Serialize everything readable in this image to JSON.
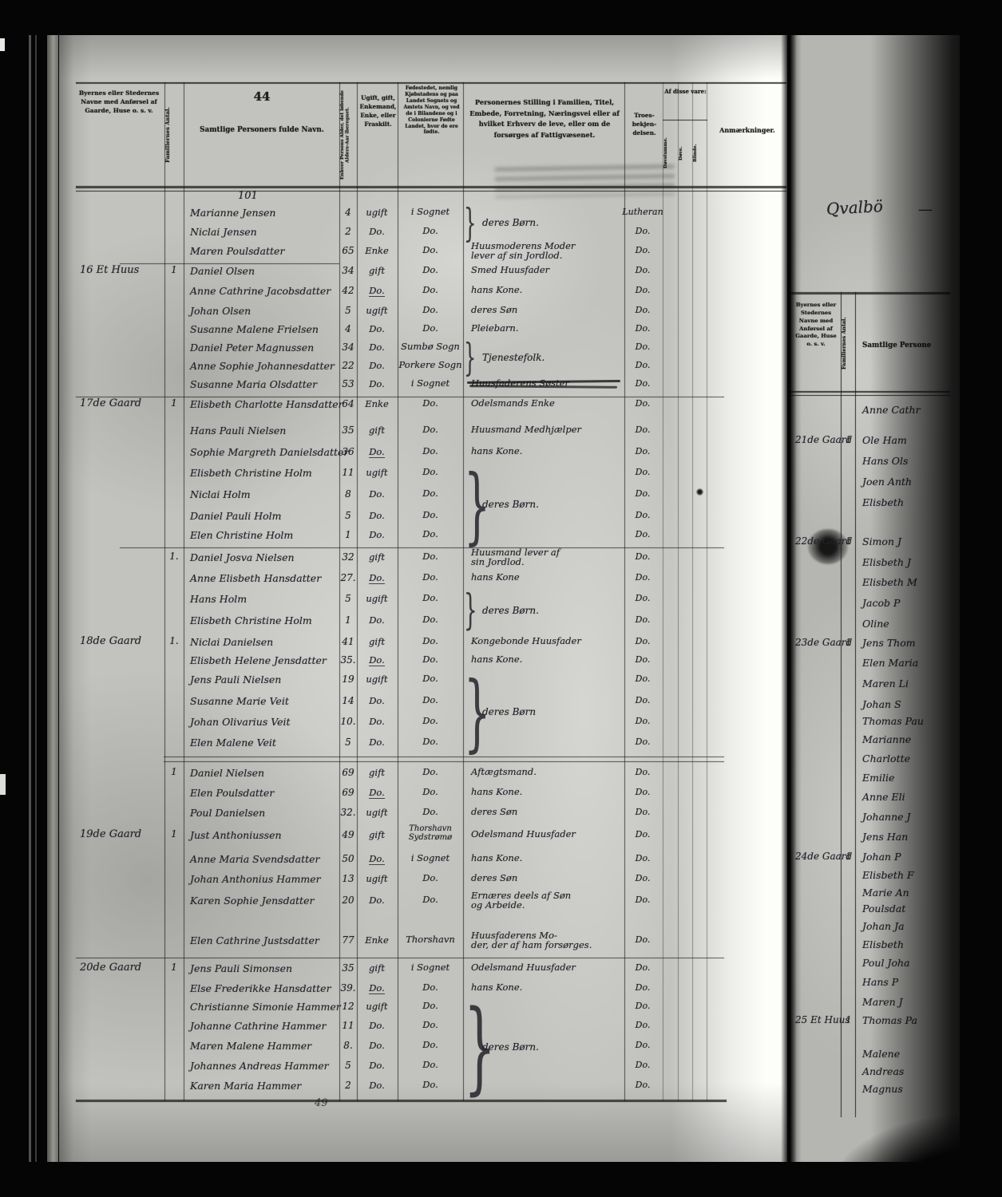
{
  "page": {
    "printed_number": "44",
    "handwritten_top": "101",
    "handwritten_bottom": "49",
    "header": {
      "place": "Byernes eller Stedernes Navne med Anførsel af Gaarde, Huse o. s. v.",
      "fam": "Familiernes Antal.",
      "name": "Samtlige Personers fulde Navn.",
      "age": "Enhver Persons Alder, det løbende Alders-Aar iberegnet.",
      "status": "Ugift, gift, Enkemand, Enke, eller Fraskilt.",
      "birth": "Fødestedet, nemlig Kjøbstadens og paa Landet Sognets og Amtets Navn, og ved de i Bilandene og i Colonierne Fødte Landet, hvor de ere fødte.",
      "position": "Personernes Stilling i Familien, Titel, Embede, Forretning, Næringsvei eller af hvilket Erhverv de leve, eller om de forsørges af Fattigvæsenet.",
      "religion": "Troes-bekjen-delsen.",
      "of_these": "Af disse vare:",
      "deaf_mute": "Døvstumme.",
      "deaf": "Døve.",
      "blind": "Blinde.",
      "remarks": "Anmærkninger."
    },
    "rows": [
      {
        "name": "Marianne Jensen",
        "age": "4",
        "status": "ugift",
        "birth": "i Sognet",
        "religion": "Lutheran"
      },
      {
        "name": "Niclai Jensen",
        "age": "2",
        "status": "Do.",
        "birth": "Do.",
        "religion": "Do."
      },
      {
        "name": "Maren Poulsdatter",
        "age": "65",
        "status": "Enke",
        "birth": "Do.",
        "religion": "Do.",
        "occ": "Huusmoderens Moder\nlever af sin Jordlod."
      },
      {
        "place": "16 Et Huus",
        "fam": "1",
        "name": "Daniel Olsen",
        "age": "34",
        "status": "gift",
        "birth": "Do.",
        "religion": "Do.",
        "occ": "Smed Huusfader"
      },
      {
        "name": "Anne Cathrine Jacobsdatter",
        "age": "42",
        "status": "Do.",
        "status_u": true,
        "birth": "Do.",
        "religion": "Do.",
        "occ": "hans Kone."
      },
      {
        "name": "Johan Olsen",
        "age": "5",
        "status": "ugift",
        "birth": "Do.",
        "religion": "Do.",
        "occ": "deres Søn"
      },
      {
        "name": "Susanne Malene Frielsen",
        "age": "4",
        "status": "Do.",
        "birth": "Do.",
        "religion": "Do.",
        "occ": "Pleiebarn."
      },
      {
        "name": "Daniel Peter Magnussen",
        "age": "34",
        "status": "Do.",
        "birth": "Sumbø Sogn",
        "religion": "Do."
      },
      {
        "name": "Anne Sophie Johannesdatter",
        "age": "22",
        "status": "Do.",
        "birth": "Porkere Sogn",
        "religion": "Do."
      },
      {
        "name": "Susanne Maria Olsdatter",
        "age": "53",
        "status": "Do.",
        "birth": "i Sognet",
        "religion": "Do.",
        "occ": "Huusfaderens Søster",
        "struck": true
      },
      {
        "place": "17de Gaard",
        "fam": "1",
        "name": "Elisbeth Charlotte Hansdatter",
        "age": "64",
        "status": "Enke",
        "birth": "Do.",
        "religion": "Do.",
        "occ": "Odelsmands Enke"
      },
      {
        "name": "Hans Pauli Nielsen",
        "age": "35",
        "status": "gift",
        "birth": "Do.",
        "religion": "Do.",
        "occ": "Huusmand Medhjælper"
      },
      {
        "name": "Sophie Margreth Danielsdatter",
        "age": "36",
        "status": "Do.",
        "status_u": true,
        "birth": "Do.",
        "religion": "Do.",
        "occ": "hans Kone."
      },
      {
        "name": "Elisbeth Christine Holm",
        "age": "11",
        "status": "ugift",
        "birth": "Do.",
        "religion": "Do."
      },
      {
        "name": "Niclai Holm",
        "age": "8",
        "status": "Do.",
        "birth": "Do.",
        "religion": "Do."
      },
      {
        "name": "Daniel Pauli Holm",
        "age": "5",
        "status": "Do.",
        "birth": "Do.",
        "religion": "Do."
      },
      {
        "name": "Elen Christine Holm",
        "age": "1",
        "status": "Do.",
        "birth": "Do.",
        "religion": "Do."
      },
      {
        "fam": "1.",
        "name": "Daniel Josva Nielsen",
        "age": "32",
        "status": "gift",
        "birth": "Do.",
        "religion": "Do.",
        "occ": "Huusmand lever af\nsin Jordlod."
      },
      {
        "name": "Anne Elisbeth Hansdatter",
        "age": "27.",
        "status": "Do.",
        "status_u": true,
        "birth": "Do.",
        "religion": "Do.",
        "occ": "hans Kone"
      },
      {
        "name": "Hans Holm",
        "age": "5",
        "status": "ugift",
        "birth": "Do.",
        "religion": "Do."
      },
      {
        "name": "Elisbeth Christine Holm",
        "age": "1",
        "status": "Do.",
        "birth": "Do.",
        "religion": "Do."
      },
      {
        "place": "18de Gaard",
        "fam": "1.",
        "name": "Niclai Danielsen",
        "age": "41",
        "status": "gift",
        "birth": "Do.",
        "religion": "Do.",
        "occ": "Kongebonde Huusfader"
      },
      {
        "name": "Elisbeth Helene Jensdatter",
        "age": "35.",
        "status": "Do.",
        "status_u": true,
        "birth": "Do.",
        "religion": "Do.",
        "occ": "hans Kone."
      },
      {
        "name": "Jens Pauli Nielsen",
        "age": "19",
        "status": "ugift",
        "birth": "Do.",
        "religion": "Do."
      },
      {
        "name": "Susanne Marie Veit",
        "age": "14",
        "status": "Do.",
        "birth": "Do.",
        "religion": "Do."
      },
      {
        "name": "Johan Olivarius Veit",
        "age": "10.",
        "status": "Do.",
        "birth": "Do.",
        "religion": "Do."
      },
      {
        "name": "Elen Malene Veit",
        "age": "5",
        "status": "Do.",
        "birth": "Do.",
        "religion": "Do."
      },
      {
        "fam": "1",
        "name": "Daniel Nielsen",
        "age": "69",
        "status": "gift",
        "birth": "Do.",
        "religion": "Do.",
        "occ": "Aftægtsmand."
      },
      {
        "name": "Elen Poulsdatter",
        "age": "69",
        "status": "Do.",
        "status_u": true,
        "birth": "Do.",
        "religion": "Do.",
        "occ": "hans Kone."
      },
      {
        "name": "Poul Danielsen",
        "age": "32.",
        "status": "ugift",
        "birth": "Do.",
        "religion": "Do.",
        "occ": "deres Søn"
      },
      {
        "place": "19de Gaard",
        "fam": "1",
        "name": "Just Anthoniussen",
        "age": "49",
        "status": "gift",
        "birth": "Thorshavn\nSydstrømø",
        "religion": "Do.",
        "occ": "Odelsmand Huusfader"
      },
      {
        "name": "Anne Maria Svendsdatter",
        "age": "50",
        "status": "Do.",
        "status_u": true,
        "birth": "i Sognet",
        "religion": "Do.",
        "occ": "hans Kone."
      },
      {
        "name": "Johan Anthonius Hammer",
        "age": "13",
        "status": "ugift",
        "birth": "Do.",
        "religion": "Do.",
        "occ": "deres Søn"
      },
      {
        "name": "Karen Sophie Jensdatter",
        "age": "20",
        "status": "Do.",
        "birth": "Do.",
        "religion": "Do.",
        "occ": "Ernæres deels af Søn\nog Arbeide."
      },
      {
        "name": "Elen Cathrine Justsdatter",
        "age": "77",
        "status": "Enke",
        "birth": "Thorshavn",
        "religion": "Do.",
        "occ": "Huusfaderens Mo-\nder, der af ham forsørges."
      },
      {
        "place": "20de Gaard",
        "fam": "1",
        "name": "Jens Pauli Simonsen",
        "age": "35",
        "status": "gift",
        "birth": "i Sognet",
        "religion": "Do.",
        "occ": "Odelsmand Huusfader"
      },
      {
        "name": "Else Frederikke Hansdatter",
        "age": "39.",
        "status": "Do.",
        "status_u": true,
        "birth": "Do.",
        "religion": "Do.",
        "occ": "hans Kone."
      },
      {
        "name": "Christianne Simonie Hammer",
        "age": "12",
        "status": "ugift",
        "birth": "Do.",
        "religion": "Do."
      },
      {
        "name": "Johanne Cathrine Hammer",
        "age": "11",
        "status": "Do.",
        "birth": "Do.",
        "religion": "Do."
      },
      {
        "name": "Maren Malene Hammer",
        "age": "8.",
        "status": "Do.",
        "birth": "Do.",
        "religion": "Do."
      },
      {
        "name": "Johannes Andreas Hammer",
        "age": "5",
        "status": "Do.",
        "birth": "Do.",
        "religion": "Do."
      },
      {
        "name": "Karen Maria Hammer",
        "age": "2",
        "status": "Do.",
        "birth": "Do.",
        "religion": "Do."
      }
    ],
    "occupation_groups": [
      {
        "from": 0,
        "to": 1,
        "label": "deres Børn."
      },
      {
        "from": 7,
        "to": 8,
        "label": "Tjenestefolk."
      },
      {
        "from": 13,
        "to": 16,
        "label": "deres Børn."
      },
      {
        "from": 19,
        "to": 20,
        "label": "deres Børn."
      },
      {
        "from": 23,
        "to": 26,
        "label": "deres Børn"
      },
      {
        "from": 37,
        "to": 41,
        "label": "deres Børn."
      }
    ]
  },
  "right_page": {
    "handwritten_title": "Qvalbö",
    "title_flourish": "—",
    "header": {
      "place": "Byernes eller Stedernes Navne med Anførsel af Gaarde, Huse o. s. v.",
      "fam": "Familiernes Antal.",
      "name_partial": "Samtlige Persone"
    },
    "rows": [
      {
        "name": "Anne Cathr"
      },
      {
        "place": "21de Gaard",
        "fam": "1",
        "name": "Ole Ham"
      },
      {
        "name": "Hans Ols"
      },
      {
        "name": "Joen Anth"
      },
      {
        "name": "Elisbeth"
      },
      {
        "place": "22de Gaard",
        "fam": "1",
        "name": "Simon J"
      },
      {
        "name": "Elisbeth J"
      },
      {
        "name": "Elisbeth M"
      },
      {
        "name": "Jacob P"
      },
      {
        "name": "Oline"
      },
      {
        "place": "23de Gaard",
        "fam": "1",
        "name": "Jens Thom"
      },
      {
        "name": "Elen Maria"
      },
      {
        "name": "Maren Li"
      },
      {
        "name": "Johan S"
      },
      {
        "name": "Thomas Pau"
      },
      {
        "name": "Marianne"
      },
      {
        "name": "Charlotte"
      },
      {
        "name": "Emilie"
      },
      {
        "name": "Anne Eli"
      },
      {
        "name": "Johanne J"
      },
      {
        "name": "Jens Han"
      },
      {
        "place": "24de Gaard",
        "fam": "1",
        "name": "Johan P"
      },
      {
        "name": "Elisbeth F"
      },
      {
        "name": "Marie An"
      },
      {
        "name": "Poulsdat"
      },
      {
        "name": "Johan Ja"
      },
      {
        "name": "Elisbeth"
      },
      {
        "name": "Poul Joha"
      },
      {
        "name": "Hans P"
      },
      {
        "name": "Maren J"
      },
      {
        "place": "25 Et Huus",
        "fam": "1",
        "name": "Thomas Pa"
      },
      {
        "name": "Malene"
      },
      {
        "name": "Andreas"
      },
      {
        "name": "Magnus"
      }
    ]
  }
}
